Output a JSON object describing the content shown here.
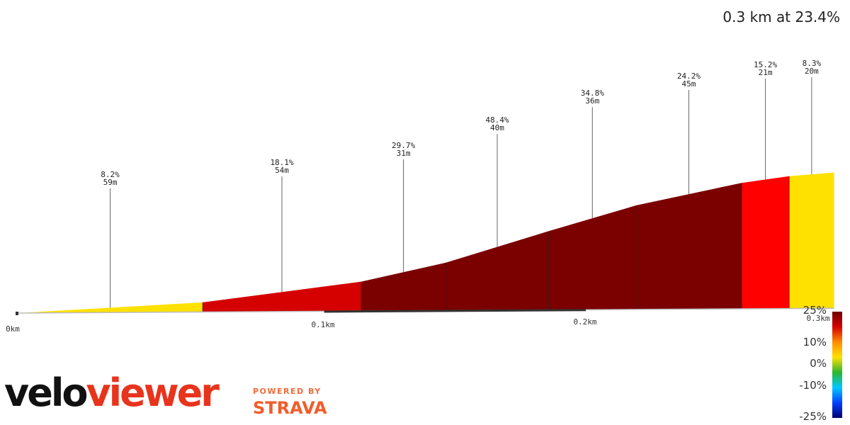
{
  "summary": "0.3 km at 23.4%",
  "brand": {
    "velo": "velo",
    "viewer": "viewer",
    "powered_by": "POWERED BY",
    "strava": "STRAVA"
  },
  "chart_data": {
    "type": "area",
    "title": "",
    "xlabel": "",
    "ylabel": "",
    "x_unit": "km",
    "x_ticks": [
      {
        "km": 0.0,
        "label": "0km"
      },
      {
        "km": 0.1,
        "label": "0.1km"
      },
      {
        "km": 0.2,
        "label": "0.2km"
      },
      {
        "km": 0.3,
        "label": "0.3km"
      }
    ],
    "segments": [
      {
        "start_km": 0.0,
        "end_km": 0.07,
        "gradient_pct": 8.2,
        "length_label": "59m",
        "color": "#ffe100"
      },
      {
        "start_km": 0.07,
        "end_km": 0.13,
        "gradient_pct": 18.1,
        "length_label": "54m",
        "color": "#d50000"
      },
      {
        "start_km": 0.13,
        "end_km": 0.162,
        "gradient_pct": 29.7,
        "length_label": "31m",
        "color": "#7b0000"
      },
      {
        "start_km": 0.162,
        "end_km": 0.201,
        "gradient_pct": 48.4,
        "length_label": "40m",
        "color": "#7b0000"
      },
      {
        "start_km": 0.201,
        "end_km": 0.234,
        "gradient_pct": 34.8,
        "length_label": "36m",
        "color": "#7b0000"
      },
      {
        "start_km": 0.234,
        "end_km": 0.274,
        "gradient_pct": 24.2,
        "length_label": "45m",
        "color": "#7b0000"
      },
      {
        "start_km": 0.274,
        "end_km": 0.292,
        "gradient_pct": 15.2,
        "length_label": "21m",
        "color": "#ff0000"
      },
      {
        "start_km": 0.292,
        "end_km": 0.309,
        "gradient_pct": 8.3,
        "length_label": "20m",
        "color": "#ffe100"
      }
    ],
    "profile": [
      {
        "km": 0.0,
        "elev": 0
      },
      {
        "km": 0.07,
        "elev": 4.8
      },
      {
        "km": 0.13,
        "elev": 14.6
      },
      {
        "km": 0.162,
        "elev": 23.8
      },
      {
        "km": 0.201,
        "elev": 39.2
      },
      {
        "km": 0.234,
        "elev": 51.7
      },
      {
        "km": 0.274,
        "elev": 62.6
      },
      {
        "km": 0.292,
        "elev": 65.8
      },
      {
        "km": 0.309,
        "elev": 67.5
      }
    ],
    "gradient_scale": {
      "labels": [
        "25%",
        "10%",
        "0%",
        "-10%",
        "-25%"
      ],
      "values": [
        25,
        10,
        0,
        -10,
        -25
      ],
      "stops": [
        "#6e0000",
        "#d40000",
        "#ff8c00",
        "#ffe100",
        "#2db52d",
        "#00c8ff",
        "#0040ff",
        "#000070"
      ]
    }
  }
}
